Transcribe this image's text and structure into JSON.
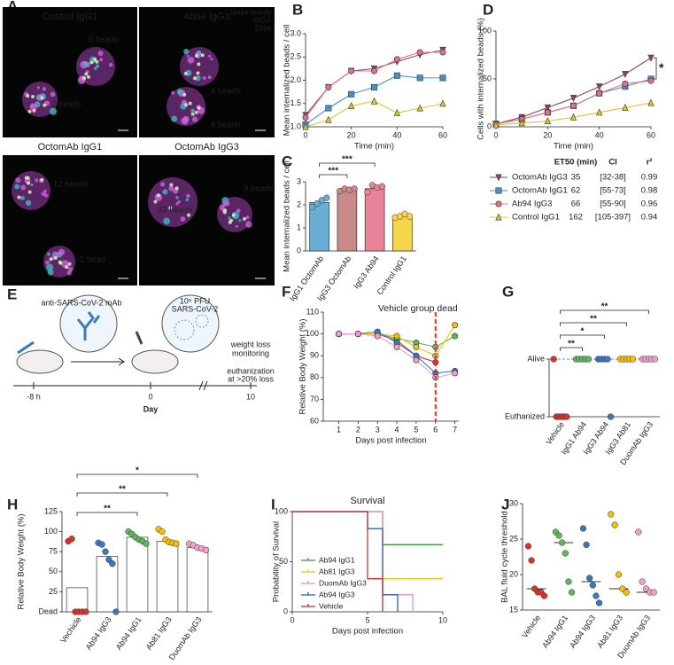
{
  "images": {
    "panel_label": "A",
    "legend": [
      "Spike beads",
      "WGA",
      "DNA"
    ],
    "panels": [
      {
        "title": "Control IgG1",
        "labels": [
          "0 beads",
          "2 beads"
        ]
      },
      {
        "title": "Ab94 IgG3",
        "labels": [
          "4 beads",
          "4 beads"
        ]
      },
      {
        "title": "OctomAb IgG1",
        "labels": [
          "12 beads",
          "1 bead"
        ]
      },
      {
        "title": "OctomAb IgG3",
        "labels": [
          "33 beads",
          "9 beads"
        ]
      }
    ]
  },
  "schematic": {
    "panel_label": "E",
    "antibody": "anti-SARS-CoV-2 mAb",
    "dose": "10⁵ PFU",
    "virus": "SARS-CoV-2",
    "monitoring": [
      "weight loss",
      "monitoring"
    ],
    "euthanasia": [
      "euthanization",
      "at >20% loss"
    ],
    "timeline": [
      "-8 h",
      "0",
      "10"
    ],
    "timeline_label": "Day"
  },
  "chart_data": [
    {
      "type": "line",
      "panel_label": "B",
      "y_label": "Mean internalized beads / cell",
      "x_label": "Time (min)",
      "x": [
        0,
        10,
        20,
        30,
        40,
        50,
        60
      ],
      "xlim": [
        0,
        60
      ],
      "xticks": [
        0,
        20,
        40,
        60
      ],
      "ylim": [
        1,
        3
      ],
      "yticks": [
        {
          "value": 1,
          "label": "1.0"
        },
        {
          "value": 1.5,
          "label": "1.5"
        },
        {
          "value": 2,
          "label": "2.0"
        },
        {
          "value": 2.5,
          "label": "2.5"
        },
        {
          "value": 3,
          "label": "3.0"
        }
      ],
      "series": [
        {
          "color": "#8b4563",
          "marker": "triangle-down",
          "values": [
            1.25,
            1.85,
            2.2,
            2.25,
            2.4,
            2.55,
            2.65
          ]
        },
        {
          "color": "#4a8fc8",
          "marker": "square",
          "values": [
            1.05,
            1.4,
            1.7,
            1.85,
            2.1,
            2.05,
            2.05
          ]
        },
        {
          "color": "#e0708a",
          "marker": "circle",
          "values": [
            1.2,
            1.85,
            2.2,
            2.2,
            2.45,
            2.6,
            2.6
          ]
        },
        {
          "color": "#d8c830",
          "marker": "triangle-up",
          "values": [
            1.0,
            1.15,
            1.45,
            1.55,
            1.3,
            1.4,
            1.5
          ]
        }
      ]
    },
    {
      "type": "bar",
      "panel_label": "C",
      "y_label": "Mean internalized beads / cell",
      "categories": [
        "IgG1 OctomAb",
        "IgG3 OctomAb",
        "IgG3 Ab94",
        "Control IgG1"
      ],
      "values": [
        2.1,
        2.65,
        2.7,
        1.5
      ],
      "colors": [
        "#6aaed6",
        "#c98a8a",
        "#e8849a",
        "#f5d64a"
      ],
      "points": [
        [
          1.9,
          2.05,
          2.2,
          2.3
        ],
        [
          2.6,
          2.7,
          2.65,
          2.7
        ],
        [
          2.55,
          2.85,
          2.75,
          2.8
        ],
        [
          1.45,
          1.5,
          1.6,
          1.5
        ]
      ],
      "ylim": [
        0,
        3
      ],
      "yticks": [
        0,
        1,
        2,
        3
      ],
      "significance": [
        "***",
        "***"
      ]
    },
    {
      "type": "line",
      "panel_label": "D",
      "y_label": "Cells with internalized beads (%)",
      "x_label": "Time (min)",
      "x": [
        0,
        10,
        20,
        30,
        40,
        50,
        60
      ],
      "xlim": [
        0,
        60
      ],
      "xticks": [
        0,
        20,
        40,
        60
      ],
      "ylim": [
        0,
        100
      ],
      "yticks": [
        0,
        50,
        100
      ],
      "annotation": "*",
      "series": [
        {
          "name": "OctomAb IgG3",
          "color": "#8b4563",
          "marker": "triangle-down",
          "values": [
            3,
            10,
            20,
            30,
            42,
            55,
            72
          ]
        },
        {
          "name": "OctomAb IgG1",
          "color": "#4a8fc8",
          "marker": "square",
          "values": [
            3,
            8,
            15,
            22,
            35,
            42,
            50
          ]
        },
        {
          "name": "Ab94 IgG3",
          "color": "#e0708a",
          "marker": "circle",
          "values": [
            3,
            8,
            15,
            22,
            35,
            45,
            48
          ]
        },
        {
          "name": "Control IgG1",
          "color": "#d8c830",
          "marker": "triangle-up",
          "values": [
            2,
            4,
            6,
            10,
            15,
            20,
            25
          ]
        }
      ],
      "table": {
        "headers": [
          "ET50 (min)",
          "CI",
          "r²"
        ],
        "rows": [
          [
            "35",
            "[32-38]",
            "0.99"
          ],
          [
            "62",
            "[55-73]",
            "0.98"
          ],
          [
            "66",
            "[55-90]",
            "0.96"
          ],
          [
            "162",
            "[105-397]",
            "0.94"
          ]
        ]
      }
    },
    {
      "type": "line",
      "panel_label": "F",
      "y_label": "Relative Body Weight (%)",
      "x_label": "Days post infection",
      "x": [
        1,
        2,
        3,
        4,
        5,
        6,
        7
      ],
      "xlim": [
        0.2,
        7.2
      ],
      "xticks": [
        1,
        2,
        3,
        4,
        5,
        6,
        7
      ],
      "ylim": [
        60,
        110
      ],
      "yticks": [
        60,
        70,
        80,
        90,
        100,
        110
      ],
      "vline": 6,
      "annotation": "Vehicle group dead",
      "series": [
        {
          "color": "#d9342b",
          "marker": "circle",
          "values": [
            100,
            100,
            100,
            97,
            90,
            87,
            null
          ]
        },
        {
          "color": "#5cb85c",
          "marker": "circle",
          "values": [
            100,
            100,
            100,
            98,
            96,
            94,
            99
          ]
        },
        {
          "color": "#f2c200",
          "marker": "circle",
          "values": [
            100,
            100,
            100,
            99,
            94,
            90,
            104
          ]
        },
        {
          "color": "#3a78c0",
          "marker": "circle",
          "values": [
            100,
            100,
            101,
            96,
            90,
            82,
            83
          ]
        },
        {
          "color": "#f0a0c8",
          "marker": "circle",
          "values": [
            100,
            100,
            99,
            94,
            88,
            80,
            82
          ]
        }
      ]
    },
    {
      "type": "strip",
      "panel_label": "G",
      "categories": [
        "Vehicle",
        "IgG1 Ab94",
        "IgG3 Ab94",
        "IgG3 Ab81",
        "DuomAb IgG3"
      ],
      "ylim": [
        0,
        1
      ],
      "yticks": [
        {
          "value": 0,
          "label": "Euthanized"
        },
        {
          "value": 1,
          "label": "Alive"
        }
      ],
      "colors": [
        "#d9342b",
        "#5cb85c",
        "#3a78c0",
        "#f2c200",
        "#f0a0c8"
      ],
      "points": [
        [
          1,
          0,
          0,
          0,
          0,
          0
        ],
        [
          1,
          1,
          1,
          1,
          1
        ],
        [
          1,
          1,
          1,
          1,
          0
        ],
        [
          1,
          1,
          1,
          1,
          1
        ],
        [
          1,
          1,
          1,
          1,
          1
        ]
      ],
      "significance": [
        "**",
        "*",
        "**",
        "**"
      ]
    },
    {
      "type": "bar",
      "panel_label": "H",
      "y_label": "Relative Body Weight (%)",
      "categories": [
        "Vechicle",
        "Ab94 IgG3",
        "Ab94 IgG1",
        "Ab81 IgG3",
        "DuomAb IgG3"
      ],
      "values": [
        30,
        69,
        93,
        88,
        80
      ],
      "bar_color": "#ffffff",
      "colors": [
        "#d9342b",
        "#3a78c0",
        "#5cb85c",
        "#f2c200",
        "#f0a0c8"
      ],
      "points": [
        [
          88,
          91,
          0,
          0,
          0,
          0
        ],
        [
          86,
          84,
          75,
          65,
          60,
          0
        ],
        [
          100,
          97,
          93,
          90,
          88,
          85
        ],
        [
          103,
          100,
          90,
          87,
          86,
          85
        ],
        [
          85,
          83,
          80,
          79,
          77
        ]
      ],
      "ylim": [
        0,
        125
      ],
      "yticks": [
        {
          "value": 0,
          "label": "Dead"
        },
        25,
        50,
        75,
        100,
        125
      ],
      "significance": [
        "**",
        "**",
        "*"
      ]
    },
    {
      "type": "step",
      "panel_label": "I",
      "title": "Survival",
      "y_label": "Probability of Survival",
      "x_label": "Days post infection",
      "xlim": [
        0,
        10
      ],
      "xticks": [
        0,
        5,
        10
      ],
      "ylim": [
        0,
        100
      ],
      "yticks": [
        0,
        50,
        100
      ],
      "series": [
        {
          "name": "Ab94 IgG1",
          "color": "#3a9a3a",
          "x": [
            0,
            6,
            6,
            10
          ],
          "values": [
            100,
            100,
            67,
            67
          ]
        },
        {
          "name": "Ab81 IgG3",
          "color": "#e8c820",
          "x": [
            0,
            6,
            6,
            10
          ],
          "values": [
            100,
            100,
            33,
            33
          ]
        },
        {
          "name": "DuomAb IgG3",
          "color": "#e890c0",
          "x": [
            0,
            6,
            6,
            8,
            8
          ],
          "values": [
            100,
            100,
            17,
            17,
            0
          ]
        },
        {
          "name": "Ab94 IgG3",
          "color": "#3060c0",
          "x": [
            0,
            5,
            5,
            6,
            6,
            7,
            7
          ],
          "values": [
            100,
            100,
            83,
            83,
            17,
            17,
            0
          ]
        },
        {
          "name": "Vehicle",
          "color": "#d03030",
          "x": [
            0,
            5,
            5,
            6,
            6
          ],
          "values": [
            100,
            100,
            33,
            33,
            0
          ]
        }
      ]
    },
    {
      "type": "strip",
      "panel_label": "J",
      "y_label": "BAL fluid cycle threshold",
      "categories": [
        "Vehicle",
        "Ab94 IgG1",
        "Ab94 IgG3",
        "Ab81 IgG3",
        "DuomAb IgG3"
      ],
      "ylim": [
        15,
        30
      ],
      "yticks": [
        15,
        20,
        25,
        30
      ],
      "colors": [
        "#d9342b",
        "#5cb85c",
        "#3a78c0",
        "#f2c200",
        "#f0a0c8"
      ],
      "points": [
        [
          24,
          22,
          18,
          17.5,
          17.5,
          17
        ],
        [
          26,
          25.5,
          24.5,
          23,
          19,
          17.5
        ],
        [
          26.5,
          24.2,
          19.5,
          18.5,
          17,
          16
        ],
        [
          28.5,
          27,
          20,
          18,
          17.5
        ],
        [
          26,
          19,
          18,
          17.5,
          17.5
        ]
      ],
      "medians": [
        18,
        24.5,
        19,
        18,
        17.5
      ]
    }
  ]
}
